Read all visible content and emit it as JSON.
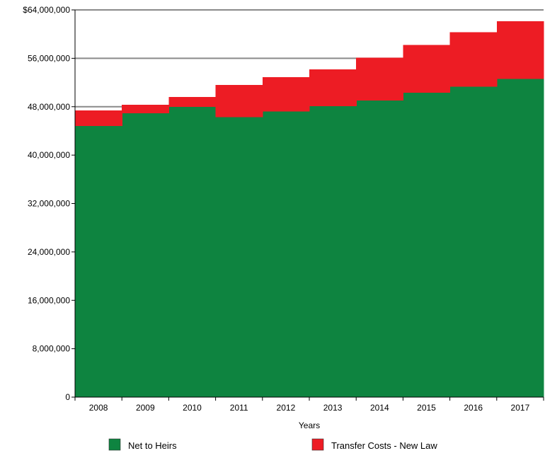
{
  "chart_data": {
    "type": "area",
    "stacked": true,
    "step": true,
    "categories": [
      "2008",
      "2009",
      "2010",
      "2011",
      "2012",
      "2013",
      "2014",
      "2015",
      "2016",
      "2017"
    ],
    "series": [
      {
        "name": "Net to Heirs",
        "color": "#0e8440",
        "values": [
          44800000,
          46900000,
          48000000,
          46300000,
          47200000,
          48100000,
          49000000,
          50300000,
          51300000,
          52600000
        ]
      },
      {
        "name": "Transfer Costs - New Law",
        "color": "#ed1c24",
        "values": [
          2600000,
          1400000,
          1600000,
          5300000,
          5700000,
          6100000,
          7100000,
          7900000,
          9000000,
          9500000
        ]
      }
    ],
    "xlabel": "Years",
    "ylabel": "",
    "ylim": [
      0,
      64000000
    ],
    "y_ticks": [
      0,
      8000000,
      16000000,
      24000000,
      32000000,
      40000000,
      48000000,
      56000000,
      64000000
    ],
    "y_tick_labels": [
      "0",
      "8,000,000",
      "16,000,000",
      "24,000,000",
      "32,000,000",
      "40,000,000",
      "48,000,000",
      "56,000,000",
      "$64,000,000"
    ],
    "gridlines_at": [
      48000000,
      56000000,
      64000000
    ],
    "grid_color": "#8a8a8a",
    "legend_position": "bottom"
  }
}
